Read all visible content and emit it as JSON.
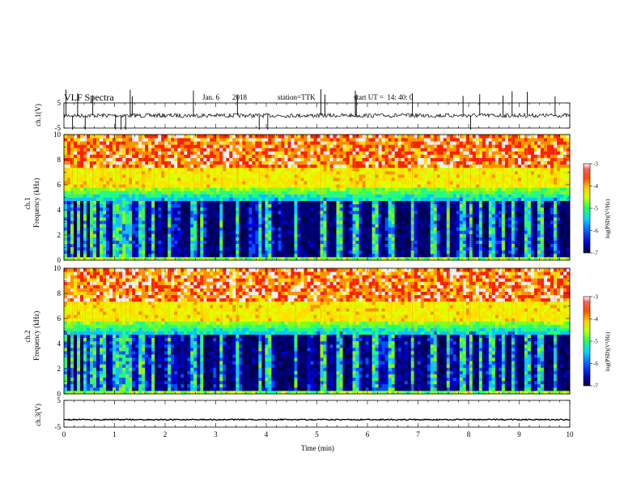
{
  "header": {
    "title": "VLF Spectra",
    "date": "Jan. 6",
    "year": "2018",
    "station": "station=TTK",
    "start": "start UT =  14: 40: 0"
  },
  "colors": {
    "spectrogram": [
      "#000044",
      "#00007a",
      "#0000d0",
      "#0050ff",
      "#00c8ff",
      "#20ff80",
      "#80ff20",
      "#e0ff00",
      "#ffe000",
      "#ff9000",
      "#ff2000",
      "#f0f0f0"
    ]
  },
  "chart_data": [
    {
      "type": "line",
      "id": "ch1-waveform",
      "ylabel": "ch.1(V)",
      "ylim": [
        -5,
        5
      ],
      "yticks": [
        "5",
        "-5"
      ],
      "xlim": [
        0,
        10
      ],
      "baseline": 0,
      "spikes_min": [
        0.04,
        0.17,
        0.27,
        0.42,
        0.57,
        1.02,
        1.13,
        1.22,
        1.31,
        1.35,
        2.56,
        3.43,
        3.86,
        4.03,
        5.08,
        5.16,
        5.76,
        5.78,
        6.89,
        7.89,
        8.04,
        8.22,
        8.68,
        8.86,
        9.16,
        9.71
      ]
    },
    {
      "type": "heatmap",
      "id": "ch1-spectrogram",
      "ylabel": "ch.1",
      "ylabel2": "Frequency (kHz)",
      "ylim": [
        0,
        10
      ],
      "yticks": [
        "0",
        "2",
        "4",
        "6",
        "8",
        "10"
      ],
      "xlim": [
        0,
        10
      ],
      "colorbar": {
        "label": "log(PSD)(V²/Hz)",
        "range": [
          -7,
          -3
        ],
        "ticks": [
          "-3",
          "-4",
          "-5",
          "-6",
          "-7"
        ]
      },
      "quiet_band_khz": [
        0.3,
        5.0
      ],
      "impulse_times_min": [
        0.04,
        0.17,
        0.27,
        0.42,
        0.57,
        0.78,
        1.02,
        1.13,
        1.22,
        1.31,
        1.55,
        1.78,
        2.08,
        2.56,
        2.72,
        3.12,
        3.43,
        3.86,
        4.03,
        4.58,
        5.08,
        5.16,
        5.46,
        5.76,
        6.15,
        6.48,
        6.89,
        7.32,
        7.61,
        7.89,
        8.04,
        8.22,
        8.45,
        8.68,
        8.86,
        9.16,
        9.42,
        9.71
      ]
    },
    {
      "type": "heatmap",
      "id": "ch2-spectrogram",
      "ylabel": "ch.2",
      "ylabel2": "Frequency (kHz)",
      "ylim": [
        0,
        10
      ],
      "yticks": [
        "0",
        "2",
        "4",
        "6",
        "8",
        "10"
      ],
      "xlim": [
        0,
        10
      ],
      "colorbar": {
        "label": "log(PSD)(V²/Hz)",
        "range": [
          -7,
          -3
        ],
        "ticks": [
          "-3",
          "-4",
          "-5",
          "-6",
          "-7"
        ]
      },
      "quiet_band_khz": [
        0.3,
        5.0
      ],
      "impulse_times_min": [
        0.04,
        0.17,
        0.27,
        0.42,
        0.57,
        0.78,
        1.02,
        1.13,
        1.22,
        1.31,
        1.55,
        1.78,
        2.08,
        2.56,
        2.72,
        3.12,
        3.43,
        3.86,
        4.03,
        4.58,
        5.08,
        5.16,
        5.46,
        5.76,
        6.15,
        6.48,
        6.89,
        7.32,
        7.61,
        7.89,
        8.04,
        8.22,
        8.45,
        8.68,
        8.86,
        9.16,
        9.42,
        9.71
      ]
    },
    {
      "type": "line",
      "id": "ch3-waveform",
      "ylabel": "ch.3(V)",
      "ylim": [
        -5,
        5
      ],
      "yticks": [
        "5",
        "-5"
      ],
      "xlim": [
        0,
        10
      ],
      "baseline": -2.2,
      "xlabel": "Time (min)",
      "xticks": [
        "0",
        "1",
        "2",
        "3",
        "4",
        "5",
        "6",
        "7",
        "8",
        "9",
        "10"
      ]
    }
  ]
}
